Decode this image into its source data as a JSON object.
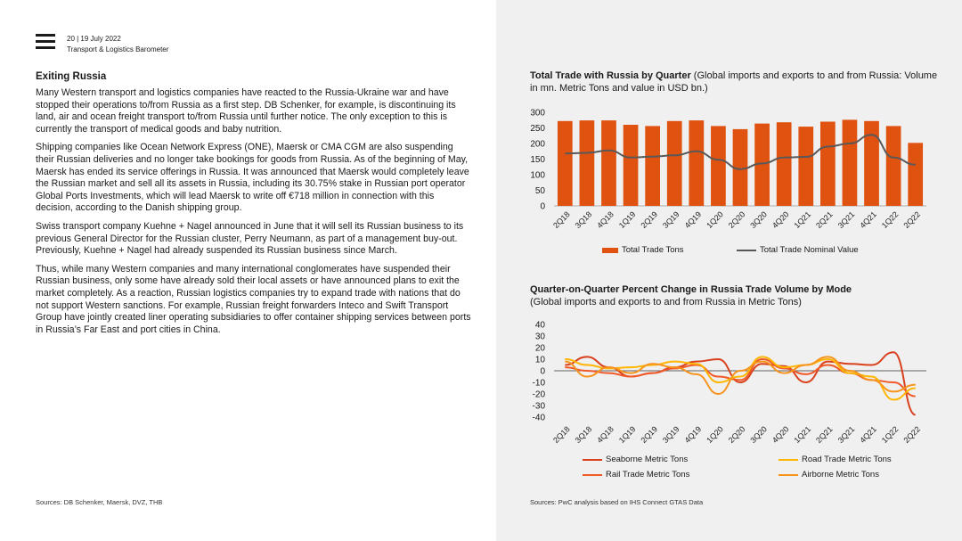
{
  "header": {
    "page_line": "20 | 19 July 2022",
    "publication": "Transport & Logistics Barometer"
  },
  "article": {
    "title": "Exiting Russia",
    "paragraphs": [
      "Many Western transport and logistics companies have reacted to the Russia-Ukraine war and have stopped their operations to/from Russia as a first step. DB Schenker, for example, is discontinuing its land, air and ocean freight transport to/from Russia until further notice. The only exception to this is currently the transport of medical goods and baby nutrition.",
      "Shipping companies like Ocean Network Express (ONE), Maersk or CMA CGM are also suspending their Russian deliveries and no longer take bookings for goods from Russia. As of the beginning of May, Maersk has ended its service offerings in Russia. It was announced that Maersk would completely leave the Russian market and sell all its assets in Russia, including its 30.75% stake in Russian port operator Global Ports Investments, which will lead Maersk to write off €718 million in connection with this decision, according to the Danish shipping group.",
      "Swiss transport company Kuehne + Nagel announced in June that it will sell its Russian business to its previous General Director for the Russian cluster, Perry Neumann, as part of a management buy-out. Previously, Kuehne + Nagel had already suspended its Russian business since March.",
      "Thus, while many Western companies and many international conglomerates have suspended their Russian business, only some have already sold their local assets or have announced plans to exit the market completely. As a reaction, Russian logistics companies try to expand trade with nations that do not support Western sanctions. For example, Russian freight forwarders Inteco and Swift Transport Group have jointly created liner operating subsidiaries to offer container shipping services between ports in Russia’s Far East and port cities in China."
    ],
    "sources": "Sources: DB Schenker, Maersk, DVZ, THB"
  },
  "right_sources": "Sources: PwC analysis based on IHS Connect GTAS Data",
  "colors": {
    "bar": "#e0520f",
    "line_dark": "#595959",
    "seaborne": "#d9411e",
    "rail": "#f05a28",
    "road": "#ffb600",
    "airborne": "#f7941d",
    "panel_bg": "#f0f0f0"
  },
  "chart_data": [
    {
      "type": "bar",
      "title": "Total Trade with Russia by Quarter",
      "subtitle": "(Global imports and exports to and from Russia: Volume in mn. Metric Tons and value in USD bn.)",
      "categories": [
        "2Q18",
        "3Q18",
        "4Q18",
        "1Q19",
        "2Q19",
        "3Q19",
        "4Q19",
        "1Q20",
        "2Q20",
        "3Q20",
        "4Q20",
        "1Q21",
        "2Q21",
        "3Q21",
        "4Q21",
        "1Q22",
        "2Q22"
      ],
      "ylim": [
        0,
        300
      ],
      "yticks": [
        0,
        50,
        100,
        150,
        200,
        250,
        300
      ],
      "series": [
        {
          "name": "Total Trade Tons",
          "kind": "bar",
          "values": [
            272,
            274,
            274,
            260,
            256,
            272,
            274,
            256,
            246,
            264,
            268,
            254,
            270,
            276,
            272,
            256,
            202
          ]
        },
        {
          "name": "Total Trade Nominal Value",
          "kind": "line",
          "values": [
            168,
            170,
            178,
            155,
            158,
            162,
            175,
            148,
            118,
            136,
            155,
            157,
            190,
            200,
            228,
            155,
            132
          ]
        }
      ]
    },
    {
      "type": "line",
      "title": "Quarter-on-Quarter Percent Change in Russia Trade Volume by Mode",
      "subtitle": "(Global imports and exports to and from Russia in Metric Tons)",
      "categories": [
        "2Q18",
        "3Q18",
        "4Q18",
        "1Q19",
        "2Q19",
        "3Q19",
        "4Q19",
        "1Q20",
        "2Q20",
        "3Q20",
        "4Q20",
        "1Q21",
        "2Q21",
        "3Q21",
        "4Q21",
        "1Q22",
        "2Q22"
      ],
      "ylim": [
        -40,
        40
      ],
      "yticks": [
        40,
        30,
        20,
        10,
        0,
        -10,
        -20,
        -30,
        -40
      ],
      "series": [
        {
          "name": "Seaborne Metric Tons",
          "color_key": "seaborne",
          "values": [
            5,
            12,
            3,
            -5,
            -2,
            3,
            8,
            10,
            -10,
            6,
            4,
            -10,
            8,
            6,
            5,
            16,
            -38
          ]
        },
        {
          "name": "Rail Trade Metric Tons",
          "color_key": "rail",
          "values": [
            3,
            0,
            -2,
            -5,
            -2,
            2,
            5,
            -5,
            -8,
            10,
            2,
            -3,
            5,
            -2,
            -8,
            -10,
            -22
          ]
        },
        {
          "name": "Road Trade Metric Tons",
          "color_key": "road",
          "values": [
            10,
            5,
            2,
            3,
            5,
            8,
            6,
            -10,
            -5,
            12,
            3,
            5,
            10,
            -2,
            -5,
            -25,
            -15
          ]
        },
        {
          "name": "Airborne Metric Tons",
          "color_key": "airborne",
          "values": [
            8,
            -5,
            3,
            -2,
            6,
            3,
            -3,
            -20,
            0,
            8,
            -2,
            5,
            12,
            0,
            -8,
            -18,
            -12
          ]
        }
      ]
    }
  ]
}
